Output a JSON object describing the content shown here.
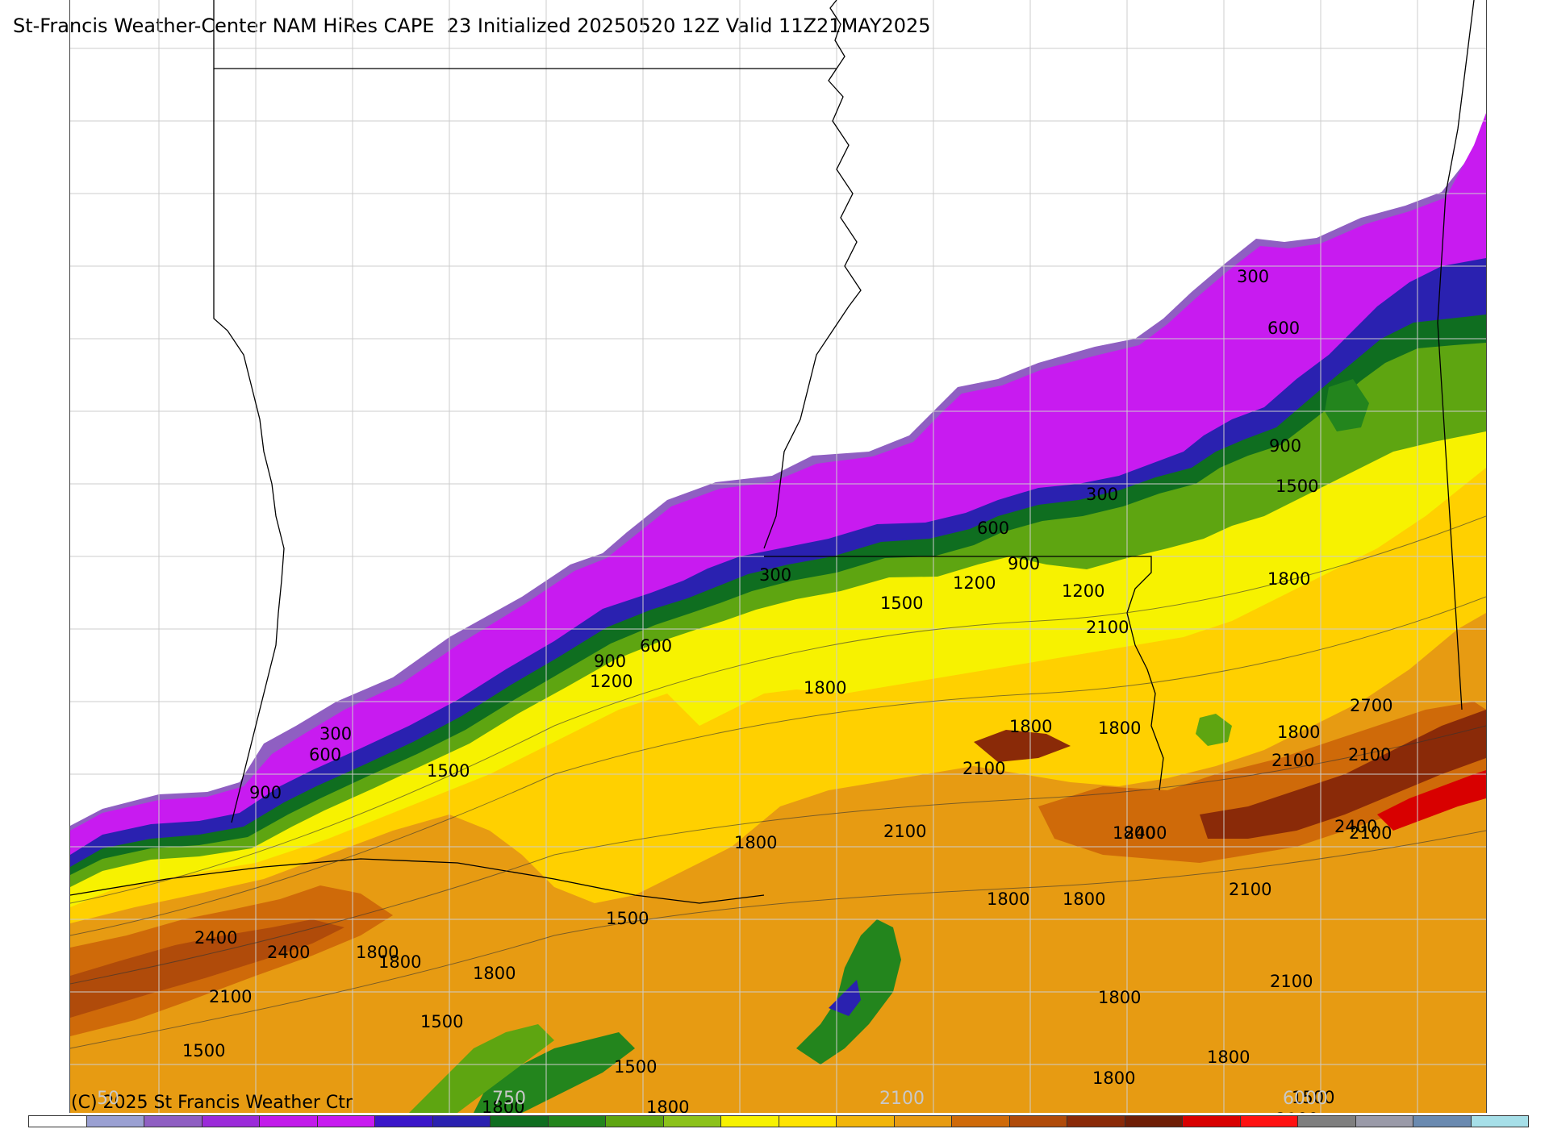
{
  "title": "St-Francis Weather-Center NAM HiRes CAPE  23 Initialized 20250520 12Z Valid 11Z21MAY2025",
  "copyright": "(C) 2025 St Francis Weather Ctr",
  "colorbar": {
    "colors": [
      "#ffffff",
      "#9aa0d2",
      "#8f5fc2",
      "#9b2bd9",
      "#c21bea",
      "#c81bf0",
      "#3b16c9",
      "#2a21b0",
      "#0f6e20",
      "#23851d",
      "#5ea511",
      "#8cc21a",
      "#f7f200",
      "#ffe400",
      "#f2b50a",
      "#e79b12",
      "#cf6a09",
      "#b04b0a",
      "#8a2a08",
      "#6f1e06",
      "#d80000",
      "#ff1111",
      "#7f7f7f",
      "#9a9aa8",
      "#6a8ab0",
      "#a6dfe8"
    ],
    "tick_labels": [
      "50",
      "750",
      "2100",
      "6000"
    ]
  },
  "contour_labels": [
    {
      "text": "300"
    },
    {
      "text": "600"
    },
    {
      "text": "900"
    },
    {
      "text": "300"
    },
    {
      "text": "1500"
    },
    {
      "text": "300"
    },
    {
      "text": "600"
    },
    {
      "text": "900"
    },
    {
      "text": "1200"
    },
    {
      "text": "1500"
    },
    {
      "text": "1200"
    },
    {
      "text": "1800"
    },
    {
      "text": "300"
    },
    {
      "text": "600"
    },
    {
      "text": "900"
    },
    {
      "text": "600"
    },
    {
      "text": "900"
    },
    {
      "text": "1200"
    },
    {
      "text": "1500"
    },
    {
      "text": "1800"
    },
    {
      "text": "1800"
    },
    {
      "text": "2100"
    },
    {
      "text": "1800"
    },
    {
      "text": "2100"
    },
    {
      "text": "2700"
    },
    {
      "text": "2100"
    },
    {
      "text": "2100"
    },
    {
      "text": "1800"
    },
    {
      "text": "2100"
    },
    {
      "text": "2400"
    },
    {
      "text": "2400"
    },
    {
      "text": "2100"
    },
    {
      "text": "1800"
    },
    {
      "text": "2100"
    },
    {
      "text": "1800"
    },
    {
      "text": "1800"
    },
    {
      "text": "2400"
    },
    {
      "text": "2400"
    },
    {
      "text": "1800"
    },
    {
      "text": "2100"
    },
    {
      "text": "1500"
    },
    {
      "text": "1800"
    },
    {
      "text": "1800"
    },
    {
      "text": "1500"
    },
    {
      "text": "1500"
    },
    {
      "text": "1500"
    },
    {
      "text": "1800"
    },
    {
      "text": "1800"
    },
    {
      "text": "1800"
    },
    {
      "text": "1800"
    },
    {
      "text": "1800"
    },
    {
      "text": "1800"
    },
    {
      "text": "2100"
    },
    {
      "text": "1500"
    },
    {
      "text": "2100"
    }
  ]
}
